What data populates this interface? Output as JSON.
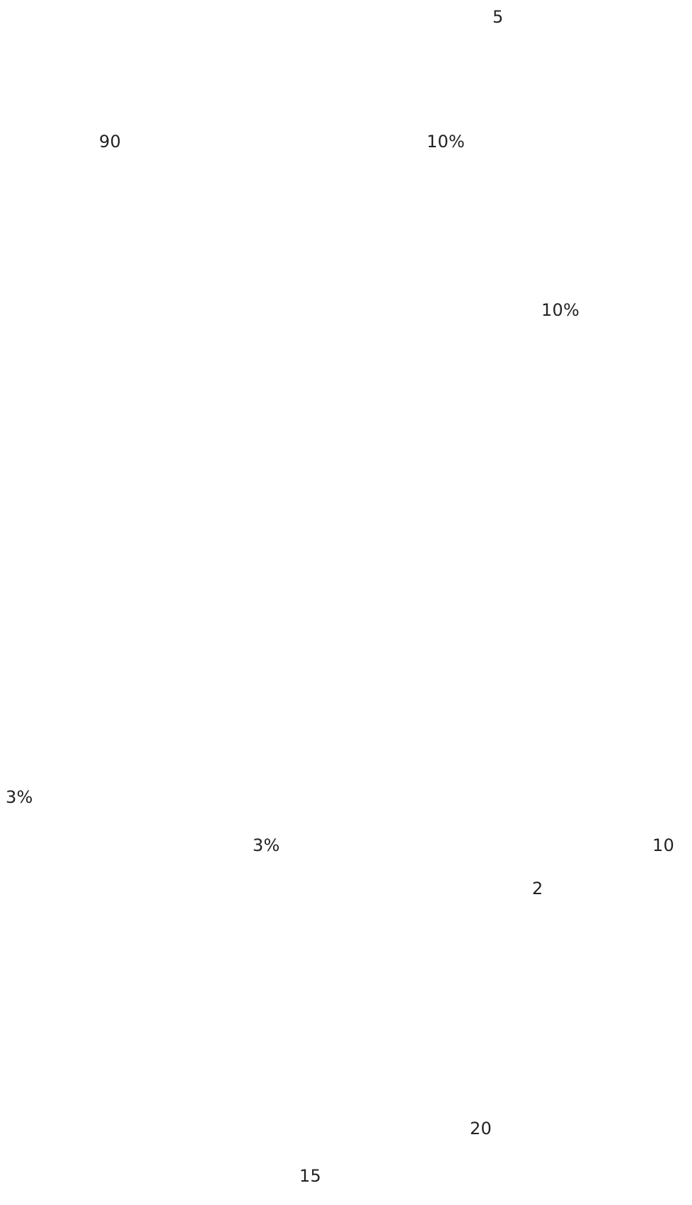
{
  "fragments": [
    {
      "text": "5"
    },
    {
      "text": "90"
    },
    {
      "text": "10%"
    },
    {
      "text": "10%"
    },
    {
      "text": "3%"
    },
    {
      "text": "3%"
    },
    {
      "text": "10"
    },
    {
      "text": "2"
    },
    {
      "text": "20"
    },
    {
      "text": "15"
    }
  ]
}
